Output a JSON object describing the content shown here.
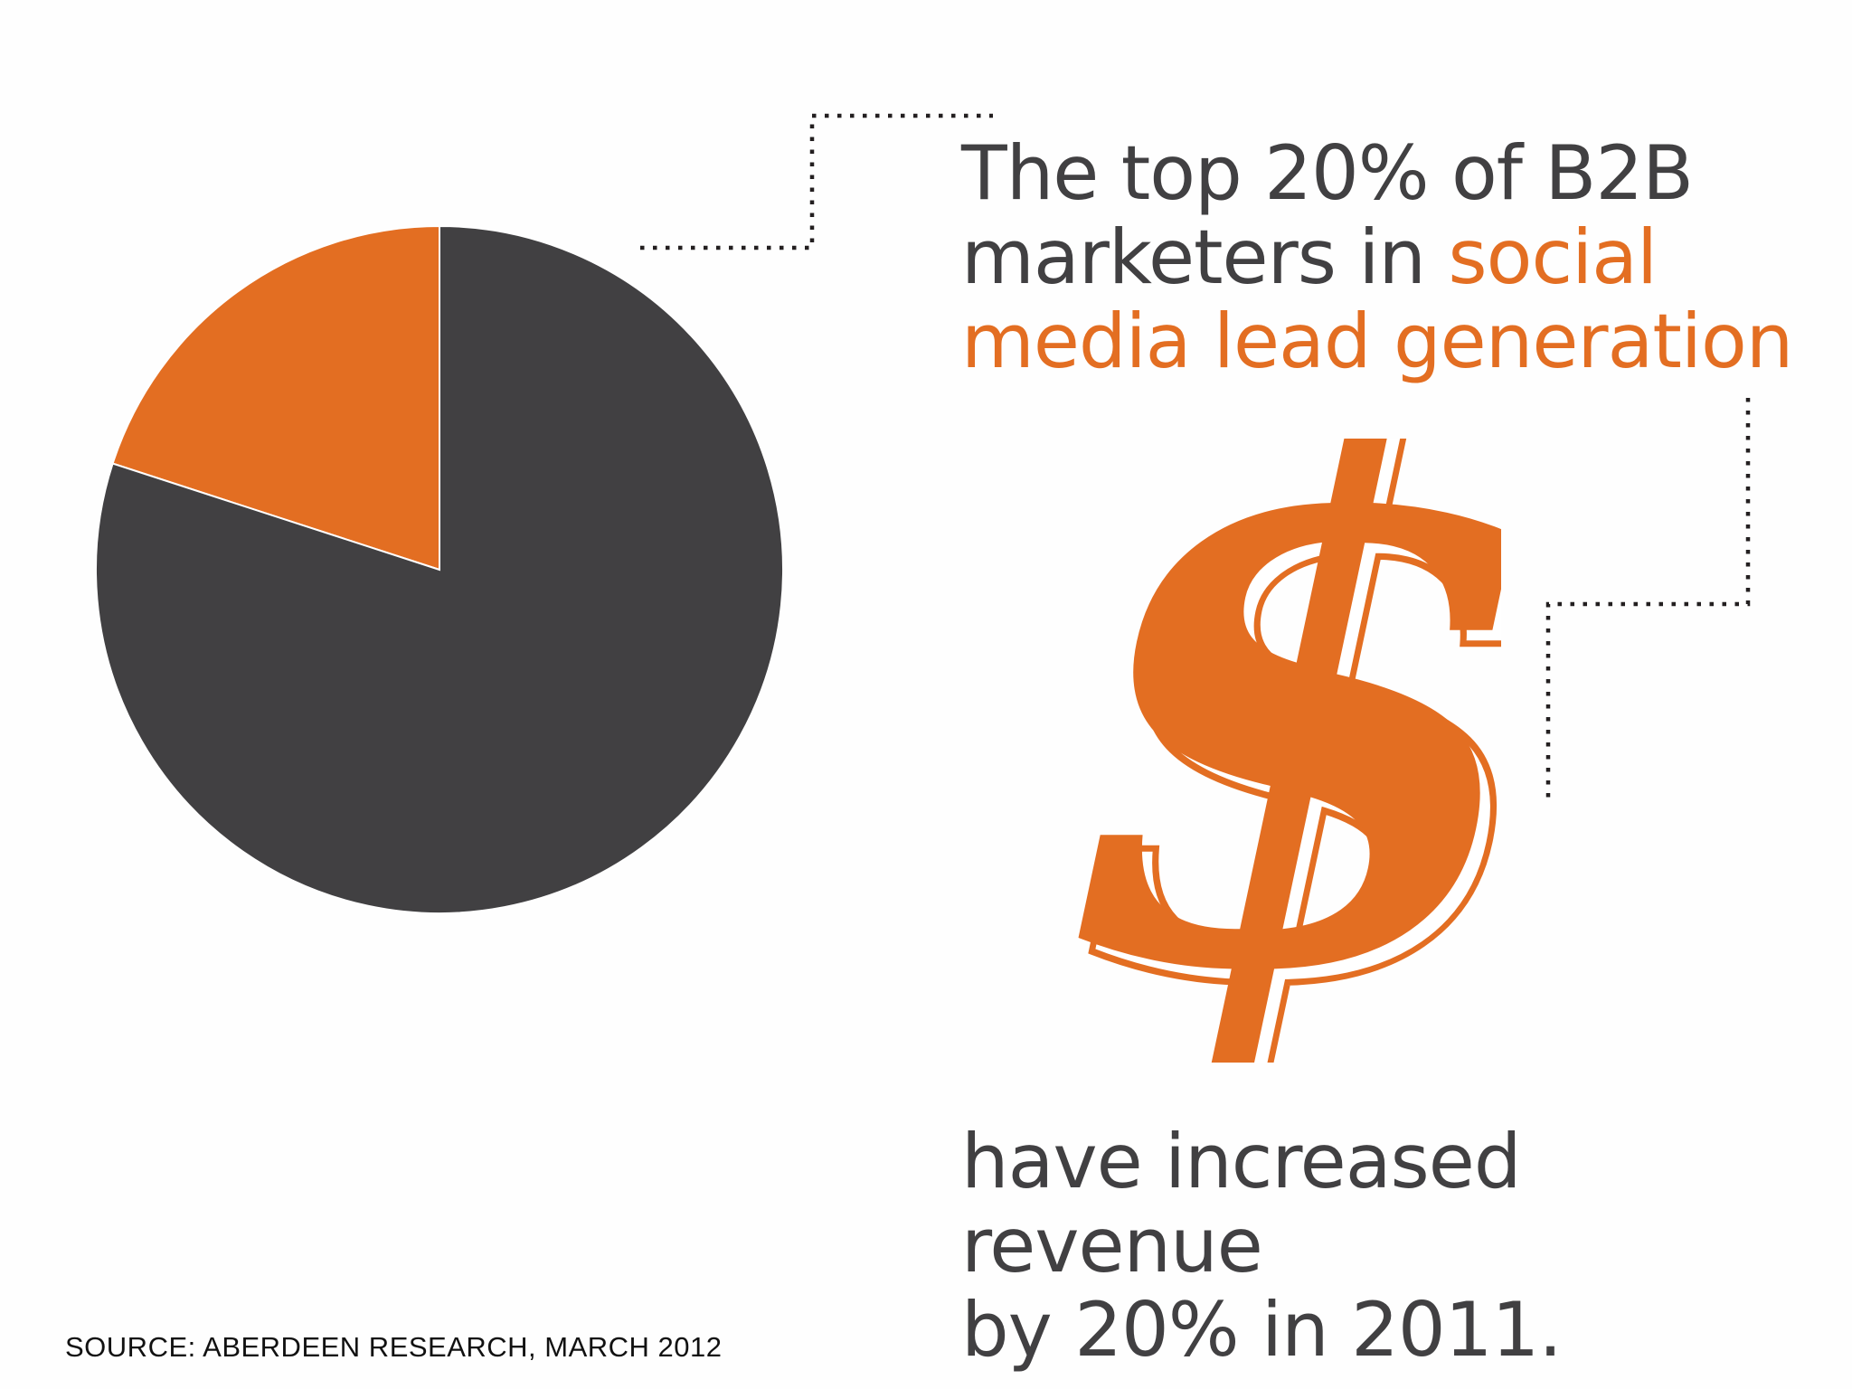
{
  "colors": {
    "accent": "#e36e22",
    "dark": "#414042",
    "text": "#414042",
    "background": "#fefefe"
  },
  "headline": {
    "part1": "The top 20% of B2B marketers in ",
    "accent": "social media lead generation"
  },
  "closing": {
    "line1": "have increased revenue",
    "line2": "by 20% in 2011."
  },
  "source": "SOURCE: ABERDEEN RESEARCH, MARCH 2012",
  "icons": {
    "dollar": "dollar-sign-icon"
  },
  "chart_data": {
    "type": "pie",
    "slices": [
      {
        "value": 20,
        "color": "#e36e22"
      },
      {
        "value": 80,
        "color": "#414042"
      }
    ],
    "start_angle_deg": 0,
    "direction": "counterclockwise"
  }
}
